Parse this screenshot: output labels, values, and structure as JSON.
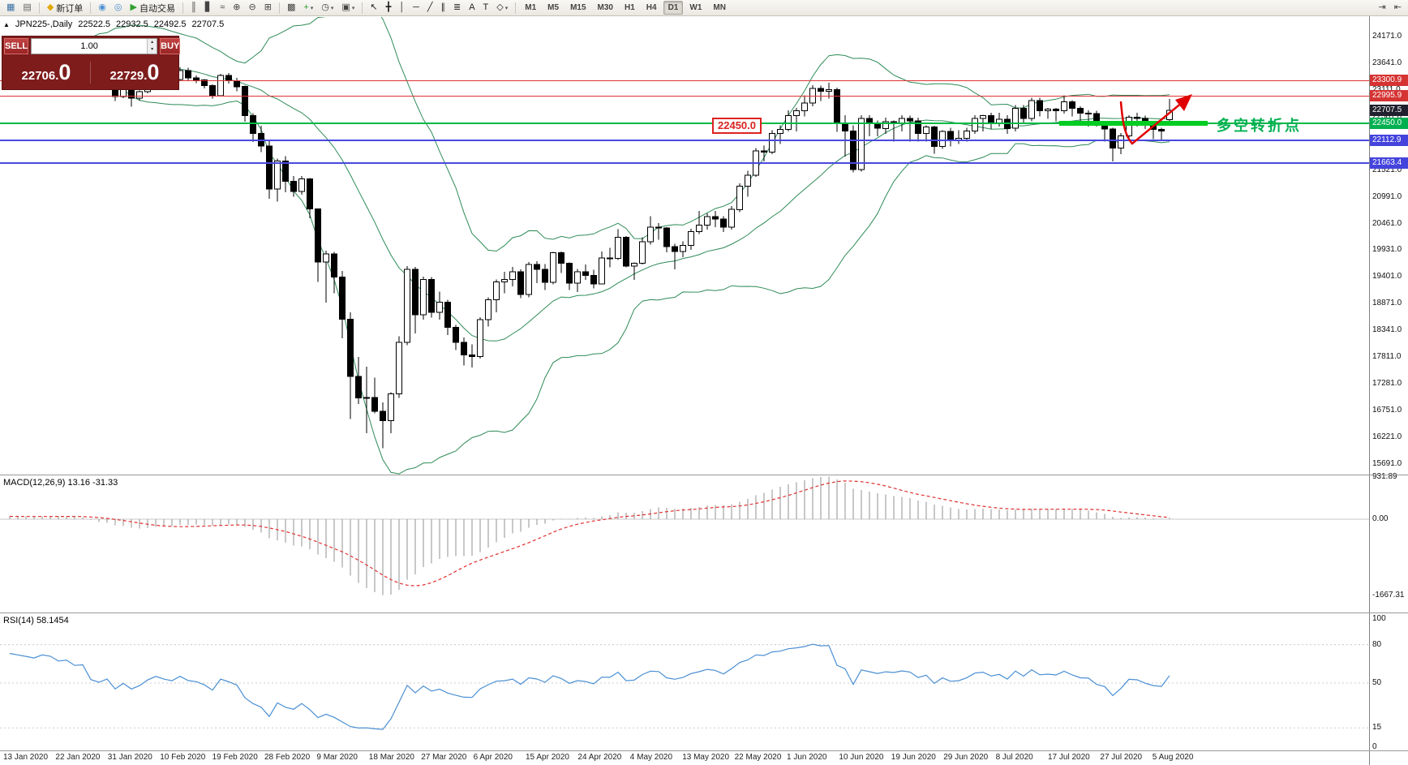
{
  "toolbar": {
    "buttons_left": [
      {
        "name": "new-chart",
        "glyph": "▦",
        "color": "#3a6ea5"
      },
      {
        "name": "chart-profiles",
        "glyph": "▤",
        "color": "#666666"
      },
      {
        "sep": true
      },
      {
        "name": "new-order",
        "glyph": "◆",
        "color": "#e0a800",
        "label": "新订单"
      },
      {
        "sep": true
      },
      {
        "name": "app-market",
        "glyph": "◉",
        "color": "#4a90d4"
      },
      {
        "name": "alerts",
        "glyph": "◎",
        "color": "#4a90d4"
      },
      {
        "name": "autotrading",
        "glyph": "▶",
        "color": "#2ea02e",
        "label": "自动交易"
      },
      {
        "sep": true
      },
      {
        "name": "bar-chart-mode",
        "glyph": "║",
        "color": "#444444"
      },
      {
        "name": "candlestick-mode",
        "glyph": "▋",
        "color": "#444444"
      },
      {
        "name": "line-chart-mode",
        "glyph": "≈",
        "color": "#444444"
      },
      {
        "name": "zoom-in",
        "glyph": "⊕",
        "color": "#444444"
      },
      {
        "name": "zoom-out",
        "glyph": "⊖",
        "color": "#444444"
      },
      {
        "name": "tile-windows",
        "glyph": "⊞",
        "color": "#444444"
      },
      {
        "sep": true
      },
      {
        "name": "arrange-windows",
        "glyph": "▩",
        "color": "#444444"
      },
      {
        "name": "indicators",
        "glyph": "+",
        "color": "#2ea02e",
        "dropdown": true
      },
      {
        "name": "periods",
        "glyph": "◷",
        "color": "#444444",
        "dropdown": true
      },
      {
        "name": "templates",
        "glyph": "▣",
        "color": "#444444",
        "dropdown": true
      },
      {
        "sep": true
      },
      {
        "name": "cursor",
        "glyph": "↖",
        "color": "#222222"
      },
      {
        "name": "crosshair",
        "glyph": "╋",
        "color": "#222222"
      },
      {
        "name": "vertical-line-tool",
        "glyph": "│",
        "color": "#222222"
      },
      {
        "name": "horizontal-line-tool",
        "glyph": "─",
        "color": "#222222"
      },
      {
        "name": "trendline-tool",
        "glyph": "╱",
        "color": "#222222"
      },
      {
        "name": "channel-tool",
        "glyph": "∥",
        "color": "#222222"
      },
      {
        "name": "fibonacci-tool",
        "glyph": "≣",
        "color": "#222222"
      },
      {
        "name": "text-tool",
        "glyph": "A",
        "color": "#222222"
      },
      {
        "name": "label-tool",
        "glyph": "T",
        "color": "#222222"
      },
      {
        "name": "shapes-tool",
        "glyph": "◇",
        "color": "#222222",
        "dropdown": true
      },
      {
        "sep": true
      }
    ],
    "timeframes": [
      "M1",
      "M5",
      "M15",
      "M30",
      "H1",
      "H4",
      "D1",
      "W1",
      "MN"
    ],
    "active_timeframe": "D1",
    "buttons_right": [
      {
        "name": "auto-scroll",
        "glyph": "⇥",
        "color": "#444444"
      },
      {
        "name": "chart-shift",
        "glyph": "⇤",
        "color": "#444444"
      }
    ]
  },
  "chart_header": {
    "symbol_period": "JPN225-,Daily",
    "open": "22522.5",
    "high": "22932.5",
    "low": "22492.5",
    "close": "22707.5"
  },
  "trade_panel": {
    "sell_label": "SELL",
    "buy_label": "BUY",
    "volume": "1.00",
    "sell_price": {
      "main": "22706.",
      "big": "0"
    },
    "buy_price": {
      "main": "22729.",
      "big": "0"
    }
  },
  "price_axis": {
    "labels": [
      {
        "text": "24171.0",
        "value": 24171
      },
      {
        "text": "23641.0",
        "value": 23641
      },
      {
        "text": "23111.0",
        "value": 23111
      },
      {
        "text": "22581.0",
        "value": 22581
      },
      {
        "text": "22051.0",
        "value": 22051
      },
      {
        "text": "21521.0",
        "value": 21521
      },
      {
        "text": "20991.0",
        "value": 20991
      },
      {
        "text": "20461.0",
        "value": 20461
      },
      {
        "text": "19931.0",
        "value": 19931
      },
      {
        "text": "19401.0",
        "value": 19401
      },
      {
        "text": "18871.0",
        "value": 18871
      },
      {
        "text": "18341.0",
        "value": 18341
      },
      {
        "text": "17811.0",
        "value": 17811
      },
      {
        "text": "17281.0",
        "value": 17281
      },
      {
        "text": "16751.0",
        "value": 16751
      },
      {
        "text": "16221.0",
        "value": 16221
      },
      {
        "text": "15691.0",
        "value": 15691
      }
    ],
    "badges": [
      {
        "text": "23300.9",
        "value": 23300.9,
        "color": "#d63333"
      },
      {
        "text": "22995.9",
        "value": 22995.9,
        "color": "#d63333"
      },
      {
        "text": "22707.5",
        "value": 22707.5,
        "color": "#20202e"
      },
      {
        "text": "22450.0",
        "value": 22450.0,
        "color": "#00b050"
      },
      {
        "text": "22112.9",
        "value": 22112.9,
        "color": "#4444dd"
      },
      {
        "text": "21663.4",
        "value": 21663.4,
        "color": "#4444dd"
      }
    ]
  },
  "levels": [
    {
      "price": 23300.9,
      "color": "#e03333",
      "width": 1
    },
    {
      "price": 22995.9,
      "color": "#e03333",
      "width": 1
    },
    {
      "price": 22450.0,
      "color": "#00b944",
      "width": 2
    },
    {
      "price": 22112.9,
      "color": "#4848e0",
      "width": 2
    },
    {
      "price": 21663.4,
      "color": "#4848e0",
      "width": 2
    }
  ],
  "annotations": {
    "price_callout": "22450.0",
    "turning_point": "多空转折点",
    "support_highlight_color": "#00cc22",
    "arrow_color": "#e00000"
  },
  "macd": {
    "label": "MACD(12,26,9) 13.16 -31.33",
    "scale": [
      {
        "text": "931.89",
        "value": 931.89
      },
      {
        "text": "0.00",
        "value": 0
      },
      {
        "text": "-1667.31",
        "value": -1667.31
      }
    ]
  },
  "rsi": {
    "label": "RSI(14) 58.1454",
    "scale": [
      {
        "text": "100",
        "value": 100
      },
      {
        "text": "80",
        "value": 80
      },
      {
        "text": "50",
        "value": 50
      },
      {
        "text": "15",
        "value": 15
      },
      {
        "text": "0",
        "value": 0
      }
    ]
  },
  "x_axis": {
    "dates": [
      "13 Jan 2020",
      "22 Jan 2020",
      "31 Jan 2020",
      "10 Feb 2020",
      "19 Feb 2020",
      "28 Feb 2020",
      "9 Mar 2020",
      "18 Mar 2020",
      "27 Mar 2020",
      "6 Apr 2020",
      "15 Apr 2020",
      "24 Apr 2020",
      "4 May 2020",
      "13 May 2020",
      "22 May 2020",
      "1 Jun 2020",
      "10 Jun 2020",
      "19 Jun 2020",
      "29 Jun 2020",
      "8 Jul 2020",
      "17 Jul 2020",
      "27 Jul 2020",
      "5 Aug 2020"
    ]
  },
  "chart_data": {
    "type": "candlestick",
    "symbol": "JPN225",
    "timeframe": "Daily",
    "ohlc_current": {
      "open": 22522.5,
      "high": 22932.5,
      "low": 22492.5,
      "close": 22707.5
    },
    "ylim": [
      15691,
      24171
    ],
    "grid": false,
    "candles": [
      [
        23850,
        24050,
        23780,
        24000
      ],
      [
        24000,
        24100,
        23900,
        23950
      ],
      [
        23950,
        24000,
        23850,
        23900
      ],
      [
        23900,
        23960,
        23800,
        23850
      ],
      [
        23850,
        24120,
        23830,
        24080
      ],
      [
        24080,
        24130,
        23980,
        24040
      ],
      [
        24040,
        24060,
        23850,
        23900
      ],
      [
        23900,
        24010,
        23820,
        23950
      ],
      [
        23950,
        23970,
        23750,
        23800
      ],
      [
        23800,
        23900,
        23700,
        23830
      ],
      [
        23830,
        23840,
        23280,
        23350
      ],
      [
        23350,
        23450,
        23180,
        23250
      ],
      [
        23250,
        23400,
        23150,
        23380
      ],
      [
        23380,
        23400,
        22890,
        22980
      ],
      [
        22980,
        23260,
        22950,
        23200
      ],
      [
        23200,
        23250,
        22780,
        22950
      ],
      [
        22950,
        23100,
        22900,
        23080
      ],
      [
        23080,
        23350,
        23050,
        23320
      ],
      [
        23320,
        23500,
        23290,
        23480
      ],
      [
        23480,
        23510,
        23300,
        23380
      ],
      [
        23380,
        23410,
        23200,
        23320
      ],
      [
        23320,
        23560,
        23300,
        23500
      ],
      [
        23500,
        23550,
        23290,
        23350
      ],
      [
        23350,
        23400,
        23250,
        23310
      ],
      [
        23310,
        23330,
        23140,
        23200
      ],
      [
        23200,
        23220,
        22940,
        23000
      ],
      [
        23000,
        23430,
        22980,
        23400
      ],
      [
        23400,
        23450,
        23240,
        23300
      ],
      [
        23300,
        23350,
        23090,
        23180
      ],
      [
        23180,
        23200,
        22480,
        22600
      ],
      [
        22600,
        22650,
        22080,
        22250
      ],
      [
        22250,
        22400,
        21880,
        22000
      ],
      [
        22000,
        22100,
        20950,
        21150
      ],
      [
        21150,
        21750,
        20900,
        21700
      ],
      [
        21700,
        21800,
        21080,
        21300
      ],
      [
        21300,
        21400,
        20990,
        21100
      ],
      [
        21100,
        21400,
        21030,
        21350
      ],
      [
        21350,
        21360,
        20570,
        20750
      ],
      [
        20750,
        20760,
        19300,
        19700
      ],
      [
        19700,
        19920,
        18890,
        19860
      ],
      [
        19860,
        19900,
        19080,
        19400
      ],
      [
        19400,
        19520,
        18180,
        18560
      ],
      [
        18560,
        18700,
        16580,
        17430
      ],
      [
        17430,
        17810,
        16880,
        17000
      ],
      [
        17000,
        17620,
        16300,
        17010
      ],
      [
        17010,
        17400,
        16690,
        16730
      ],
      [
        16730,
        16910,
        16000,
        16550
      ],
      [
        16550,
        17110,
        16300,
        17080
      ],
      [
        17080,
        18220,
        17000,
        18100
      ],
      [
        18100,
        19620,
        18050,
        19550
      ],
      [
        19550,
        19600,
        18280,
        18650
      ],
      [
        18650,
        19410,
        18550,
        19350
      ],
      [
        19350,
        19400,
        18590,
        18700
      ],
      [
        18700,
        19110,
        18550,
        18900
      ],
      [
        18900,
        18950,
        18250,
        18400
      ],
      [
        18400,
        18450,
        17950,
        18100
      ],
      [
        18100,
        18200,
        17640,
        17850
      ],
      [
        17850,
        18060,
        17600,
        17820
      ],
      [
        17820,
        18600,
        17780,
        18550
      ],
      [
        18550,
        19000,
        18420,
        18950
      ],
      [
        18950,
        19350,
        18700,
        19300
      ],
      [
        19300,
        19500,
        19080,
        19350
      ],
      [
        19350,
        19600,
        19210,
        19500
      ],
      [
        19500,
        19550,
        18980,
        19050
      ],
      [
        19050,
        19700,
        19000,
        19650
      ],
      [
        19650,
        19710,
        19280,
        19550
      ],
      [
        19550,
        19660,
        19140,
        19290
      ],
      [
        19290,
        19900,
        19250,
        19880
      ],
      [
        19880,
        19910,
        19480,
        19670
      ],
      [
        19670,
        19690,
        19140,
        19280
      ],
      [
        19280,
        19560,
        19100,
        19500
      ],
      [
        19500,
        19650,
        19340,
        19430
      ],
      [
        19430,
        19540,
        19170,
        19260
      ],
      [
        19260,
        19910,
        19250,
        19780
      ],
      [
        19780,
        19980,
        19590,
        19770
      ],
      [
        19770,
        20350,
        19740,
        20190
      ],
      [
        20190,
        20210,
        19590,
        19620
      ],
      [
        19620,
        19690,
        19340,
        19670
      ],
      [
        19670,
        20190,
        19650,
        20100
      ],
      [
        20100,
        20610,
        20040,
        20390
      ],
      [
        20390,
        20470,
        20140,
        20370
      ],
      [
        20370,
        20390,
        19890,
        20000
      ],
      [
        20000,
        20060,
        19550,
        19910
      ],
      [
        19910,
        20110,
        19790,
        20030
      ],
      [
        20030,
        20360,
        19940,
        20300
      ],
      [
        20300,
        20710,
        20250,
        20430
      ],
      [
        20430,
        20660,
        20340,
        20600
      ],
      [
        20600,
        20710,
        20390,
        20550
      ],
      [
        20550,
        20610,
        20290,
        20390
      ],
      [
        20390,
        20810,
        20340,
        20740
      ],
      [
        20740,
        21260,
        20690,
        21200
      ],
      [
        21200,
        21510,
        20990,
        21420
      ],
      [
        21420,
        21960,
        21390,
        21900
      ],
      [
        21900,
        22010,
        21690,
        21880
      ],
      [
        21880,
        22310,
        21840,
        22250
      ],
      [
        22250,
        22410,
        22040,
        22330
      ],
      [
        22330,
        22710,
        22290,
        22600
      ],
      [
        22600,
        22760,
        22290,
        22700
      ],
      [
        22700,
        23010,
        22590,
        22850
      ],
      [
        22850,
        23210,
        22790,
        23140
      ],
      [
        23140,
        23200,
        22890,
        23090
      ],
      [
        23090,
        23260,
        22940,
        23120
      ],
      [
        23120,
        23160,
        22280,
        22450
      ],
      [
        22450,
        22610,
        21790,
        22300
      ],
      [
        22300,
        22410,
        21480,
        21530
      ],
      [
        21530,
        22610,
        21490,
        22550
      ],
      [
        22550,
        22610,
        22190,
        22450
      ],
      [
        22450,
        22510,
        22190,
        22350
      ],
      [
        22350,
        22560,
        22240,
        22480
      ],
      [
        22480,
        22510,
        22090,
        22440
      ],
      [
        22440,
        22610,
        22290,
        22550
      ],
      [
        22550,
        22600,
        22090,
        22500
      ],
      [
        22500,
        22560,
        22090,
        22250
      ],
      [
        22250,
        22410,
        22090,
        22380
      ],
      [
        22380,
        22400,
        21850,
        21990
      ],
      [
        21990,
        22310,
        21940,
        22290
      ],
      [
        22290,
        22360,
        21990,
        22120
      ],
      [
        22120,
        22310,
        22040,
        22150
      ],
      [
        22150,
        22360,
        22090,
        22300
      ],
      [
        22300,
        22610,
        22240,
        22550
      ],
      [
        22550,
        22620,
        22290,
        22600
      ],
      [
        22600,
        22660,
        22340,
        22450
      ],
      [
        22450,
        22660,
        22390,
        22530
      ],
      [
        22530,
        22610,
        22240,
        22350
      ],
      [
        22350,
        22810,
        22290,
        22750
      ],
      [
        22750,
        22810,
        22440,
        22550
      ],
      [
        22550,
        22960,
        22490,
        22900
      ],
      [
        22900,
        22960,
        22590,
        22700
      ],
      [
        22700,
        22760,
        22540,
        22730
      ],
      [
        22730,
        22760,
        22490,
        22700
      ],
      [
        22700,
        23010,
        22640,
        22880
      ],
      [
        22880,
        22910,
        22590,
        22750
      ],
      [
        22750,
        22790,
        22480,
        22650
      ],
      [
        22650,
        22710,
        22390,
        22640
      ],
      [
        22640,
        22700,
        22390,
        22420
      ],
      [
        22420,
        22460,
        22090,
        22340
      ],
      [
        22340,
        22360,
        21690,
        21960
      ],
      [
        21960,
        22260,
        21840,
        22200
      ],
      [
        22200,
        22610,
        22140,
        22570
      ],
      [
        22570,
        22660,
        22390,
        22550
      ],
      [
        22550,
        22600,
        22340,
        22420
      ],
      [
        22420,
        22460,
        22140,
        22330
      ],
      [
        22330,
        22360,
        22110,
        22300
      ],
      [
        22522,
        22933,
        22493,
        22708
      ]
    ],
    "indicators": {
      "bollinger": {
        "period": 20,
        "deviation": 2,
        "color": "#2e8b57"
      },
      "macd": {
        "fast": 12,
        "slow": 26,
        "signal_period": 9,
        "main_value": 13.16,
        "signal_value": -31.33,
        "range": [
          -1667.31,
          931.89
        ],
        "histogram_color": "#909090",
        "signal_color": "#e03030"
      },
      "rsi": {
        "period": 14,
        "value": 58.1454,
        "color": "#4a8fd4",
        "levels": [
          80,
          50,
          15
        ]
      }
    },
    "levels": {
      "resistance": [
        23300.9,
        22995.9
      ],
      "pivot": 22450.0,
      "support": [
        22112.9,
        21663.4
      ],
      "current": 22707.5
    }
  }
}
